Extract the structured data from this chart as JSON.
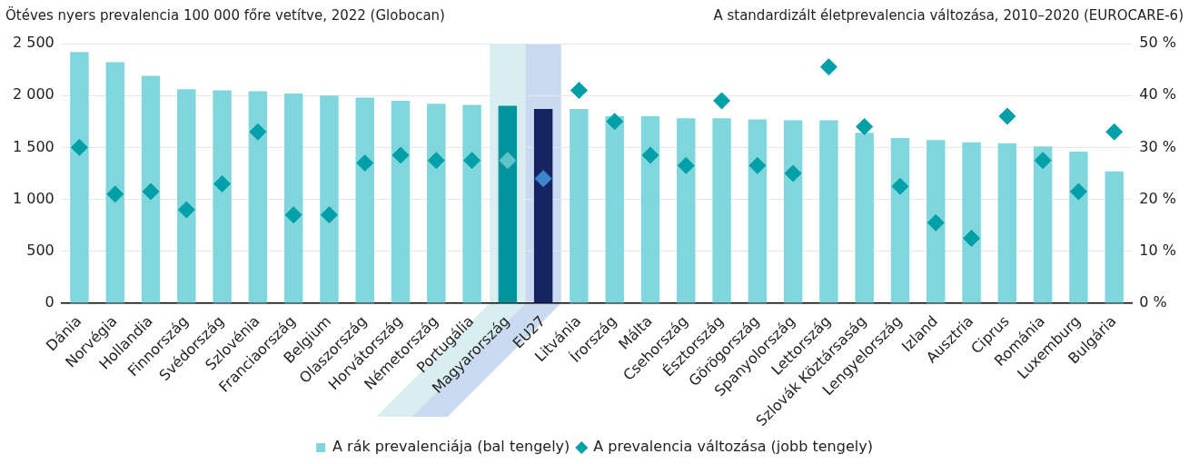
{
  "chart_data": {
    "type": "bar",
    "ylabel": "Ötéves nyers prevalencia 100 000 főre vetítve, 2022 (Globocan)",
    "y2label": "A standardizált életprevalencia változása, 2010–2020 (EUROCARE-6)",
    "categories": [
      "Dánia",
      "Norvégia",
      "Hollandia",
      "Finnország",
      "Svédország",
      "Szlovénia",
      "Franciaország",
      "Belgium",
      "Olaszország",
      "Horvátország",
      "Németország",
      "Portugália",
      "Magyarország",
      "EU27",
      "Litvánia",
      "Írország",
      "Málta",
      "Csehország",
      "Észtország",
      "Görögország",
      "Spanyolország",
      "Lettország",
      "Szlovák Köztársaság",
      "Lengyelország",
      "Izland",
      "Ausztria",
      "Ciprus",
      "Románia",
      "Luxemburg",
      "Bulgária"
    ],
    "series": [
      {
        "name": "A rák prevalenciája (bal tengely)",
        "color": "#7fd6dc",
        "colors": [
          "#7fd6dc",
          "#7fd6dc",
          "#7fd6dc",
          "#7fd6dc",
          "#7fd6dc",
          "#7fd6dc",
          "#7fd6dc",
          "#7fd6dc",
          "#7fd6dc",
          "#7fd6dc",
          "#7fd6dc",
          "#7fd6dc",
          "#00959e",
          "#172462",
          "#7fd6dc",
          "#7fd6dc",
          "#7fd6dc",
          "#7fd6dc",
          "#7fd6dc",
          "#7fd6dc",
          "#7fd6dc",
          "#7fd6dc",
          "#7fd6dc",
          "#7fd6dc",
          "#7fd6dc",
          "#7fd6dc",
          "#7fd6dc",
          "#7fd6dc",
          "#7fd6dc",
          "#7fd6dc"
        ],
        "values": [
          2420,
          2320,
          2190,
          2060,
          2050,
          2040,
          2020,
          2000,
          1980,
          1950,
          1920,
          1910,
          1900,
          1870,
          1870,
          1800,
          1800,
          1780,
          1780,
          1770,
          1760,
          1760,
          1640,
          1590,
          1570,
          1550,
          1540,
          1510,
          1460,
          1270
        ]
      },
      {
        "name": "A prevalencia változása (jobb tengely)",
        "type": "scatter",
        "axis": "y2",
        "marker": "diamond",
        "color": "#00a0a8",
        "colors": [
          "#00a0a8",
          "#00a0a8",
          "#00a0a8",
          "#00a0a8",
          "#00a0a8",
          "#00a0a8",
          "#00a0a8",
          "#00a0a8",
          "#00a0a8",
          "#00a0a8",
          "#00a0a8",
          "#00a0a8",
          "#5ec3c8",
          "#3d86cc",
          "#00a0a8",
          "#00a0a8",
          "#00a0a8",
          "#00a0a8",
          "#00a0a8",
          "#00a0a8",
          "#00a0a8",
          "#00a0a8",
          "#00a0a8",
          "#00a0a8",
          "#00a0a8",
          "#00a0a8",
          "#00a0a8",
          "#00a0a8",
          "#00a0a8",
          "#00a0a8"
        ],
        "x": [
          "Dánia",
          "Norvégia",
          "Hollandia",
          "Finnország",
          "Svédország",
          "Szlovénia",
          "Franciaország",
          "Belgium",
          "Olaszország",
          "Horvátország",
          "Németország",
          "Portugália",
          "Magyarország",
          "EU27",
          "Litvánia",
          "Írország",
          "Málta",
          "Csehország",
          "Észtország",
          "Görögország",
          "Spanyolország",
          "Lettország",
          "Szlovák Köztársaság",
          "Lengyelország",
          "Izland",
          "Ausztria",
          "Ciprus",
          "Románia",
          "Luxemburg",
          "Bulgária"
        ],
        "values": [
          30,
          21,
          21.5,
          18,
          23,
          33,
          17,
          17,
          27,
          28.5,
          27.5,
          27.5,
          27.5,
          24,
          41,
          35,
          28.5,
          26.5,
          39,
          26.5,
          25,
          45.5,
          34,
          22.5,
          15.5,
          12.5,
          36,
          27.5,
          21.5,
          33
        ]
      }
    ],
    "ylim": [
      0,
      2500
    ],
    "yticks": [
      0,
      500,
      {
        "value": 1000,
        "label": "1 000"
      },
      {
        "value": 1500,
        "label": "1 500"
      },
      {
        "value": 2000,
        "label": "2 000"
      },
      {
        "value": 2500,
        "label": "2 500"
      }
    ],
    "y2lim": [
      0,
      50
    ],
    "y2ticks": [
      {
        "value": 0,
        "label": "0 %"
      },
      {
        "value": 10,
        "label": "10 %"
      },
      {
        "value": 20,
        "label": "20 %"
      },
      {
        "value": 30,
        "label": "30 %"
      },
      {
        "value": 40,
        "label": "40 %"
      },
      {
        "value": 50,
        "label": "50 %"
      }
    ],
    "grid": "y",
    "legend": "bottom"
  }
}
